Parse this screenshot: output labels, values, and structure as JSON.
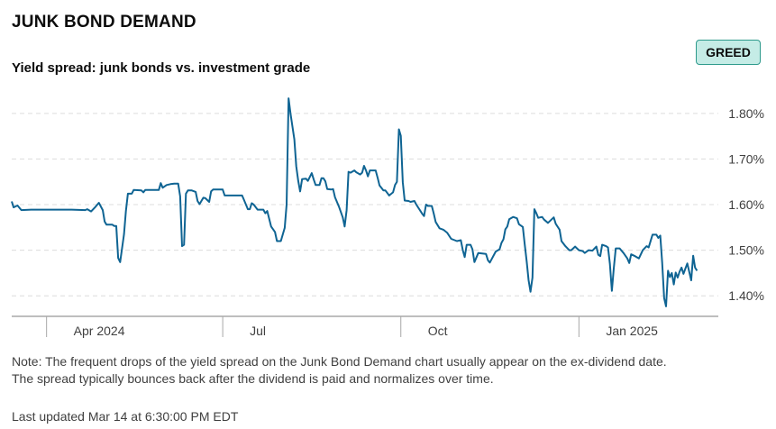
{
  "header": {
    "title": "JUNK BOND DEMAND",
    "subtitle": "Yield spread: junk bonds vs. investment grade",
    "badge": "GREED",
    "badge_color": "#c5ece6"
  },
  "footer": {
    "note_line1": "Note: The frequent drops of the yield spread on the Junk Bond Demand chart usually appear on the ex-dividend date.",
    "note_line2": "The spread typically bounces back after the dividend is paid and normalizes over time.",
    "updated": "Last updated Mar 14 at 6:30:00 PM EDT"
  },
  "chart_data": {
    "type": "line",
    "title": "Yield spread: junk bonds vs. investment grade",
    "line_color": "#0f6493",
    "grid": "horizontal dashed",
    "y_axis_position": "right",
    "ylim": [
      1.355,
      1.855
    ],
    "x_range": [
      "2024-03-14",
      "2025-03-14"
    ],
    "y_ticks": [
      {
        "value": 1.4,
        "label": "1.40%"
      },
      {
        "value": 1.5,
        "label": "1.50%"
      },
      {
        "value": 1.6,
        "label": "1.60%"
      },
      {
        "value": 1.7,
        "label": "1.70%"
      },
      {
        "value": 1.8,
        "label": "1.80%"
      }
    ],
    "x_ticks": [
      {
        "date": "2024-04-01",
        "label": "Apr 2024"
      },
      {
        "date": "2024-07-01",
        "label": "Jul"
      },
      {
        "date": "2024-10-01",
        "label": "Oct"
      },
      {
        "date": "2025-01-01",
        "label": "Jan 2025"
      }
    ],
    "series": [
      {
        "points": [
          [
            "2024-03-14",
            1.607
          ],
          [
            "2024-03-15",
            1.594
          ],
          [
            "2024-03-17",
            1.598
          ],
          [
            "2024-03-19",
            1.588
          ],
          [
            "2024-03-24",
            1.589
          ],
          [
            "2024-03-31",
            1.589
          ],
          [
            "2024-04-07",
            1.589
          ],
          [
            "2024-04-14",
            1.589
          ],
          [
            "2024-04-21",
            1.588
          ],
          [
            "2024-04-22",
            1.59
          ],
          [
            "2024-04-24",
            1.585
          ],
          [
            "2024-04-26",
            1.594
          ],
          [
            "2024-04-28",
            1.604
          ],
          [
            "2024-04-30",
            1.588
          ],
          [
            "2024-05-01",
            1.563
          ],
          [
            "2024-05-02",
            1.556
          ],
          [
            "2024-05-05",
            1.556
          ],
          [
            "2024-05-06",
            1.553
          ],
          [
            "2024-05-07",
            1.553
          ],
          [
            "2024-05-08",
            1.483
          ],
          [
            "2024-05-09",
            1.474
          ],
          [
            "2024-05-11",
            1.535
          ],
          [
            "2024-05-12",
            1.586
          ],
          [
            "2024-05-13",
            1.624
          ],
          [
            "2024-05-15",
            1.624
          ],
          [
            "2024-05-16",
            1.632
          ],
          [
            "2024-05-20",
            1.631
          ],
          [
            "2024-05-21",
            1.627
          ],
          [
            "2024-05-22",
            1.632
          ],
          [
            "2024-05-29",
            1.632
          ],
          [
            "2024-05-30",
            1.647
          ],
          [
            "2024-05-31",
            1.637
          ],
          [
            "2024-06-02",
            1.643
          ],
          [
            "2024-06-04",
            1.645
          ],
          [
            "2024-06-06",
            1.646
          ],
          [
            "2024-06-08",
            1.646
          ],
          [
            "2024-06-09",
            1.618
          ],
          [
            "2024-06-10",
            1.509
          ],
          [
            "2024-06-11",
            1.512
          ],
          [
            "2024-06-12",
            1.624
          ],
          [
            "2024-06-13",
            1.631
          ],
          [
            "2024-06-15",
            1.631
          ],
          [
            "2024-06-17",
            1.628
          ],
          [
            "2024-06-18",
            1.608
          ],
          [
            "2024-06-19",
            1.601
          ],
          [
            "2024-06-21",
            1.615
          ],
          [
            "2024-06-22",
            1.614
          ],
          [
            "2024-06-24",
            1.606
          ],
          [
            "2024-06-25",
            1.629
          ],
          [
            "2024-06-26",
            1.633
          ],
          [
            "2024-06-27",
            1.633
          ],
          [
            "2024-07-01",
            1.633
          ],
          [
            "2024-07-02",
            1.62
          ],
          [
            "2024-07-06",
            1.62
          ],
          [
            "2024-07-11",
            1.62
          ],
          [
            "2024-07-12",
            1.61
          ],
          [
            "2024-07-14",
            1.59
          ],
          [
            "2024-07-15",
            1.59
          ],
          [
            "2024-07-16",
            1.603
          ],
          [
            "2024-07-17",
            1.6
          ],
          [
            "2024-07-19",
            1.589
          ],
          [
            "2024-07-22",
            1.589
          ],
          [
            "2024-07-23",
            1.581
          ],
          [
            "2024-07-24",
            1.586
          ],
          [
            "2024-07-26",
            1.552
          ],
          [
            "2024-07-28",
            1.54
          ],
          [
            "2024-07-29",
            1.52
          ],
          [
            "2024-07-31",
            1.52
          ],
          [
            "2024-08-02",
            1.549
          ],
          [
            "2024-08-03",
            1.6
          ],
          [
            "2024-08-04",
            1.833
          ],
          [
            "2024-08-05",
            1.8
          ],
          [
            "2024-08-07",
            1.743
          ],
          [
            "2024-08-08",
            1.684
          ],
          [
            "2024-08-09",
            1.652
          ],
          [
            "2024-08-10",
            1.629
          ],
          [
            "2024-08-11",
            1.656
          ],
          [
            "2024-08-13",
            1.657
          ],
          [
            "2024-08-14",
            1.652
          ],
          [
            "2024-08-16",
            1.669
          ],
          [
            "2024-08-17",
            1.655
          ],
          [
            "2024-08-18",
            1.643
          ],
          [
            "2024-08-20",
            1.643
          ],
          [
            "2024-08-21",
            1.658
          ],
          [
            "2024-08-22",
            1.658
          ],
          [
            "2024-08-23",
            1.651
          ],
          [
            "2024-08-24",
            1.634
          ],
          [
            "2024-08-26",
            1.633
          ],
          [
            "2024-08-27",
            1.634
          ],
          [
            "2024-08-28",
            1.616
          ],
          [
            "2024-08-30",
            1.596
          ],
          [
            "2024-09-01",
            1.572
          ],
          [
            "2024-09-02",
            1.552
          ],
          [
            "2024-09-03",
            1.588
          ],
          [
            "2024-09-04",
            1.672
          ],
          [
            "2024-09-05",
            1.67
          ],
          [
            "2024-09-07",
            1.675
          ],
          [
            "2024-09-08",
            1.671
          ],
          [
            "2024-09-10",
            1.666
          ],
          [
            "2024-09-11",
            1.67
          ],
          [
            "2024-09-12",
            1.685
          ],
          [
            "2024-09-13",
            1.675
          ],
          [
            "2024-09-14",
            1.662
          ],
          [
            "2024-09-15",
            1.675
          ],
          [
            "2024-09-18",
            1.675
          ],
          [
            "2024-09-19",
            1.659
          ],
          [
            "2024-09-20",
            1.642
          ],
          [
            "2024-09-22",
            1.631
          ],
          [
            "2024-09-23",
            1.631
          ],
          [
            "2024-09-25",
            1.62
          ],
          [
            "2024-09-27",
            1.627
          ],
          [
            "2024-09-28",
            1.643
          ],
          [
            "2024-09-29",
            1.65
          ],
          [
            "2024-09-30",
            1.765
          ],
          [
            "2024-10-01",
            1.751
          ],
          [
            "2024-10-02",
            1.649
          ],
          [
            "2024-10-03",
            1.609
          ],
          [
            "2024-10-05",
            1.608
          ],
          [
            "2024-10-06",
            1.606
          ],
          [
            "2024-10-08",
            1.608
          ],
          [
            "2024-10-09",
            1.6
          ],
          [
            "2024-10-12",
            1.58
          ],
          [
            "2024-10-13",
            1.575
          ],
          [
            "2024-10-14",
            1.6
          ],
          [
            "2024-10-15",
            1.597
          ],
          [
            "2024-10-17",
            1.597
          ],
          [
            "2024-10-18",
            1.58
          ],
          [
            "2024-10-19",
            1.562
          ],
          [
            "2024-10-21",
            1.548
          ],
          [
            "2024-10-23",
            1.545
          ],
          [
            "2024-10-25",
            1.538
          ],
          [
            "2024-10-27",
            1.525
          ],
          [
            "2024-10-30",
            1.52
          ],
          [
            "2024-11-01",
            1.522
          ],
          [
            "2024-11-02",
            1.5
          ],
          [
            "2024-11-03",
            1.485
          ],
          [
            "2024-11-04",
            1.512
          ],
          [
            "2024-11-06",
            1.512
          ],
          [
            "2024-11-07",
            1.502
          ],
          [
            "2024-11-08",
            1.474
          ],
          [
            "2024-11-10",
            1.494
          ],
          [
            "2024-11-14",
            1.492
          ],
          [
            "2024-11-15",
            1.478
          ],
          [
            "2024-11-16",
            1.473
          ],
          [
            "2024-11-19",
            1.497
          ],
          [
            "2024-11-21",
            1.502
          ],
          [
            "2024-11-22",
            1.516
          ],
          [
            "2024-11-23",
            1.524
          ],
          [
            "2024-11-24",
            1.546
          ],
          [
            "2024-11-25",
            1.552
          ],
          [
            "2024-11-26",
            1.568
          ],
          [
            "2024-11-28",
            1.573
          ],
          [
            "2024-11-30",
            1.57
          ],
          [
            "2024-12-01",
            1.557
          ],
          [
            "2024-12-03",
            1.551
          ],
          [
            "2024-12-04",
            1.513
          ],
          [
            "2024-12-05",
            1.475
          ],
          [
            "2024-12-06",
            1.434
          ],
          [
            "2024-12-07",
            1.409
          ],
          [
            "2024-12-08",
            1.44
          ],
          [
            "2024-12-09",
            1.59
          ],
          [
            "2024-12-10",
            1.581
          ],
          [
            "2024-12-11",
            1.571
          ],
          [
            "2024-12-13",
            1.573
          ],
          [
            "2024-12-14",
            1.567
          ],
          [
            "2024-12-16",
            1.56
          ],
          [
            "2024-12-18",
            1.568
          ],
          [
            "2024-12-19",
            1.572
          ],
          [
            "2024-12-20",
            1.558
          ],
          [
            "2024-12-22",
            1.545
          ],
          [
            "2024-12-23",
            1.52
          ],
          [
            "2024-12-25",
            1.509
          ],
          [
            "2024-12-27",
            1.5
          ],
          [
            "2024-12-28",
            1.5
          ],
          [
            "2024-12-30",
            1.508
          ],
          [
            "2025-01-01",
            1.5
          ],
          [
            "2025-01-03",
            1.498
          ],
          [
            "2025-01-04",
            1.494
          ],
          [
            "2025-01-06",
            1.5
          ],
          [
            "2025-01-08",
            1.499
          ],
          [
            "2025-01-10",
            1.508
          ],
          [
            "2025-01-11",
            1.49
          ],
          [
            "2025-01-12",
            1.487
          ],
          [
            "2025-01-13",
            1.512
          ],
          [
            "2025-01-15",
            1.509
          ],
          [
            "2025-01-16",
            1.506
          ],
          [
            "2025-01-17",
            1.47
          ],
          [
            "2025-01-18",
            1.411
          ],
          [
            "2025-01-19",
            1.46
          ],
          [
            "2025-01-20",
            1.504
          ],
          [
            "2025-01-22",
            1.504
          ],
          [
            "2025-01-24",
            1.494
          ],
          [
            "2025-01-26",
            1.482
          ],
          [
            "2025-01-27",
            1.472
          ],
          [
            "2025-01-28",
            1.491
          ],
          [
            "2025-01-30",
            1.487
          ],
          [
            "2025-02-01",
            1.482
          ],
          [
            "2025-02-03",
            1.5
          ],
          [
            "2025-02-05",
            1.509
          ],
          [
            "2025-02-06",
            1.506
          ],
          [
            "2025-02-08",
            1.534
          ],
          [
            "2025-02-10",
            1.534
          ],
          [
            "2025-02-11",
            1.527
          ],
          [
            "2025-02-12",
            1.532
          ],
          [
            "2025-02-13",
            1.473
          ],
          [
            "2025-02-14",
            1.395
          ],
          [
            "2025-02-15",
            1.377
          ],
          [
            "2025-02-16",
            1.455
          ],
          [
            "2025-02-17",
            1.441
          ],
          [
            "2025-02-18",
            1.45
          ],
          [
            "2025-02-19",
            1.425
          ],
          [
            "2025-02-20",
            1.451
          ],
          [
            "2025-02-21",
            1.44
          ],
          [
            "2025-02-22",
            1.453
          ],
          [
            "2025-02-23",
            1.462
          ],
          [
            "2025-02-24",
            1.448
          ],
          [
            "2025-02-25",
            1.46
          ],
          [
            "2025-02-26",
            1.471
          ],
          [
            "2025-02-28",
            1.434
          ],
          [
            "2025-03-01",
            1.488
          ],
          [
            "2025-03-02",
            1.462
          ],
          [
            "2025-03-03",
            1.455
          ]
        ]
      }
    ]
  }
}
